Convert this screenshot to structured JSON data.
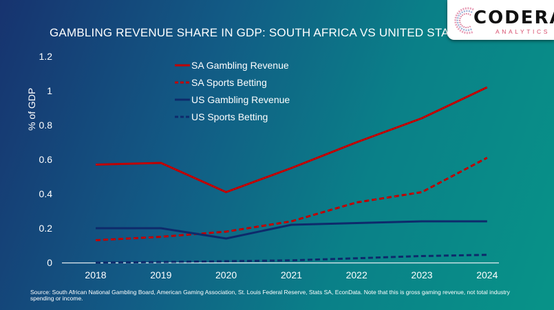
{
  "logo": {
    "name": "CODERA",
    "sub": "ANALYTICS"
  },
  "source": "Source:  South African National Gambling Board, American Gaming Association, St. Louis Federal Reserve, Stats SA, EconData. Note that this is gross gaming revenue, not total industry spending or income.",
  "chart_data": {
    "type": "line",
    "title": "GAMBLING REVENUE SHARE IN GDP: SOUTH AFRICA VS UNITED STATES",
    "xlabel": "",
    "ylabel": "% of GDP",
    "categories": [
      "2018",
      "2019",
      "2020",
      "2021",
      "2022",
      "2023",
      "2024"
    ],
    "ylim": [
      0,
      1.2
    ],
    "yticks": [
      "0",
      "0.2",
      "0.4",
      "0.6",
      "0.8",
      "1",
      "1.2"
    ],
    "ytick_values": [
      0,
      0.2,
      0.4,
      0.6,
      0.8,
      1.0,
      1.2
    ],
    "grid": false,
    "legend_position": "top-left",
    "series": [
      {
        "name": "SA Gambling Revenue",
        "color": "#c00000",
        "style": "solid",
        "values": [
          0.57,
          0.58,
          0.41,
          0.55,
          0.7,
          0.84,
          1.02
        ]
      },
      {
        "name": "SA Sports Betting",
        "color": "#c00000",
        "style": "dashed",
        "values": [
          0.13,
          0.15,
          0.18,
          0.24,
          0.35,
          0.41,
          0.61
        ]
      },
      {
        "name": "US Gambling Revenue",
        "color": "#0e2a6b",
        "style": "solid",
        "values": [
          0.2,
          0.2,
          0.14,
          0.22,
          0.23,
          0.24,
          0.24
        ]
      },
      {
        "name": "US Sports Betting",
        "color": "#0e2a6b",
        "style": "dashed",
        "values": [
          0.0,
          0.003,
          0.008,
          0.013,
          0.025,
          0.038,
          0.045
        ]
      }
    ]
  }
}
